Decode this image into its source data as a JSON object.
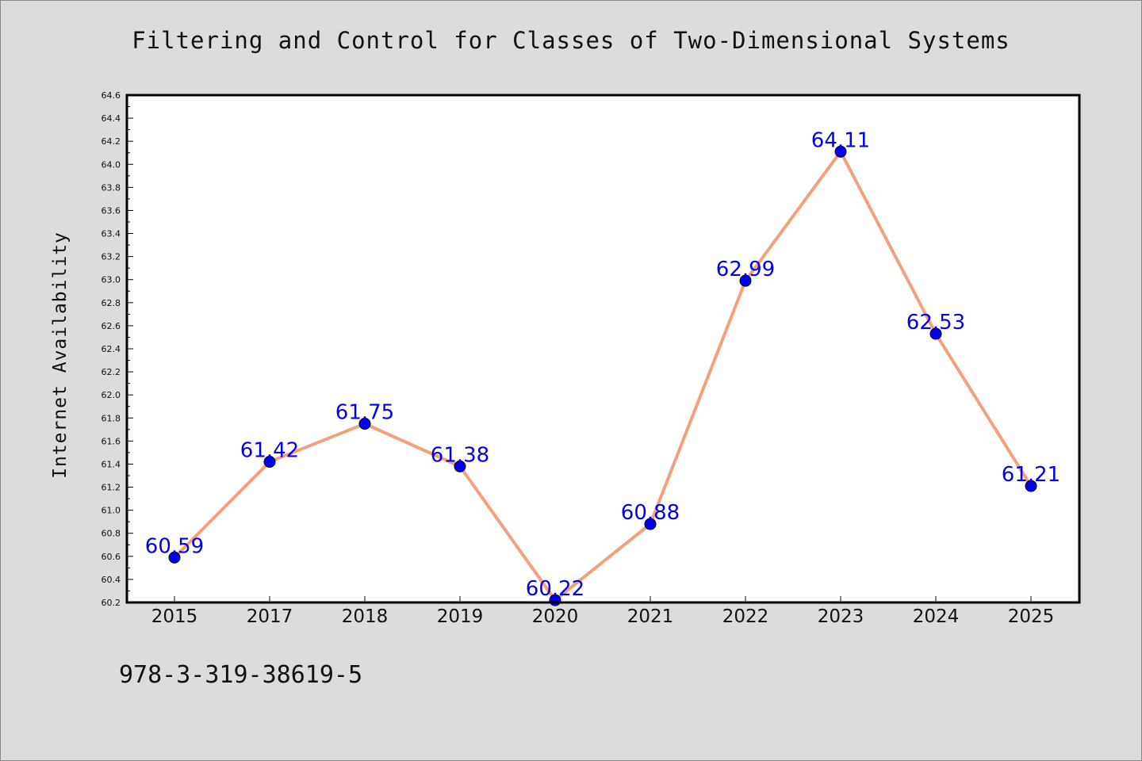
{
  "chart_data": {
    "type": "line",
    "title": "Filtering and Control for Classes of Two-Dimensional Systems",
    "ylabel": "Internet Availability",
    "xlabel": "",
    "categories": [
      "2015",
      "2017",
      "2018",
      "2019",
      "2020",
      "2021",
      "2022",
      "2023",
      "2024",
      "2025"
    ],
    "series": [
      {
        "values": [
          60.59,
          61.42,
          61.75,
          61.38,
          60.22,
          60.88,
          62.99,
          64.11,
          62.53,
          61.21
        ],
        "labels": [
          "60.59",
          "61.42",
          "61.75",
          "61.38",
          "60.22",
          "60.88",
          "62.99",
          "64.11",
          "62.53",
          "61.21"
        ]
      }
    ],
    "ylim": [
      60.2,
      64.6
    ],
    "yticks": [
      "60.2",
      "60.4",
      "60.6",
      "60.8",
      "61.0",
      "61.2",
      "61.4",
      "61.6",
      "61.8",
      "62.0",
      "62.2",
      "62.4",
      "62.6",
      "62.8",
      "63.0",
      "63.2",
      "63.4",
      "63.6",
      "63.8",
      "64.0",
      "64.2",
      "64.4",
      "64.6"
    ],
    "grid": false,
    "line_color": "#f4a07c",
    "marker_color": "#0000ee",
    "label_color": "#0000ee"
  },
  "footnote": "978-3-319-38619-5"
}
